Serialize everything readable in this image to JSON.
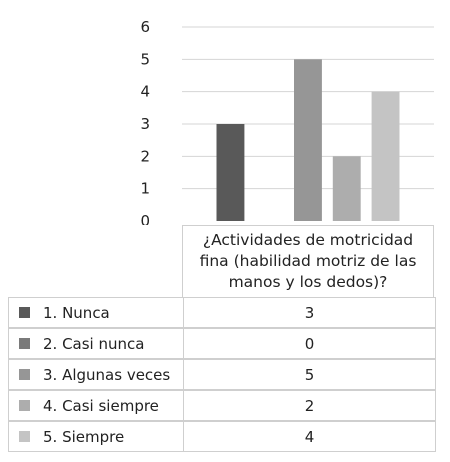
{
  "chart_data": {
    "type": "bar",
    "categories": [
      "¿Actividades de motricidad fina (habilidad motriz de las manos y los dedos)?"
    ],
    "series": [
      {
        "name": "1. Nunca",
        "values": [
          3
        ],
        "color": "#595959"
      },
      {
        "name": "2. Casi nunca",
        "values": [
          0
        ],
        "color": "#7a7a7a"
      },
      {
        "name": "3. Algunas veces",
        "values": [
          5
        ],
        "color": "#969696"
      },
      {
        "name": "4. Casi siempre",
        "values": [
          2
        ],
        "color": "#adadad"
      },
      {
        "name": "5. Siempre",
        "values": [
          4
        ],
        "color": "#c4c4c4"
      }
    ],
    "ylim": [
      0,
      6
    ],
    "yticks": [
      "0",
      "1",
      "2",
      "3",
      "4",
      "5",
      "6"
    ],
    "grid": true,
    "legend": "data-table"
  }
}
